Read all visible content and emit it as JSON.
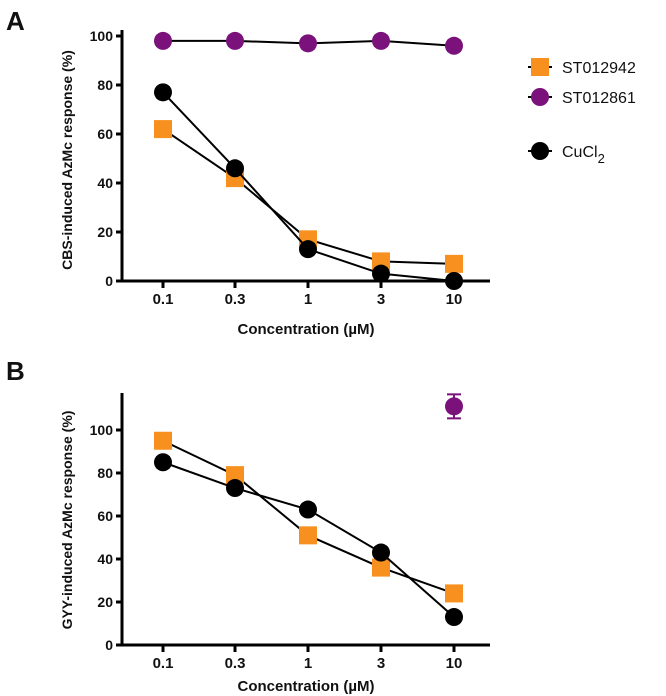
{
  "chart_data": [
    {
      "panel": "A",
      "type": "line",
      "xlabel": "Concentration (µM)",
      "ylabel": "CBS-induced AzMc response (%)",
      "categories": [
        "0.1",
        "0.3",
        "1",
        "3",
        "10"
      ],
      "ylim": [
        0,
        100
      ],
      "yticks": [
        0,
        20,
        40,
        60,
        80,
        100
      ],
      "series": [
        {
          "name": "ST012942",
          "color": "#f7901e",
          "marker": "square",
          "values": [
            62,
            42,
            17,
            8,
            7
          ]
        },
        {
          "name": "ST012861",
          "color": "#7b127b",
          "marker": "circle",
          "values": [
            98,
            98,
            97,
            98,
            96
          ]
        },
        {
          "name": "CuCl2",
          "color": "#000000",
          "marker": "circle",
          "values": [
            77,
            46,
            13,
            3,
            0
          ]
        }
      ]
    },
    {
      "panel": "B",
      "type": "line",
      "xlabel": "Concentration (µM)",
      "ylabel": "GYY-induced AzMc response (%)",
      "categories": [
        "0.1",
        "0.3",
        "1",
        "3",
        "10"
      ],
      "ylim": [
        0,
        120
      ],
      "yticks": [
        0,
        20,
        40,
        60,
        80,
        100
      ],
      "series": [
        {
          "name": "ST012942",
          "color": "#f7901e",
          "marker": "square",
          "values": [
            95,
            79,
            51,
            36,
            24
          ]
        },
        {
          "name": "ST012861",
          "color": "#7b127b",
          "marker": "circle",
          "values": [
            null,
            null,
            null,
            null,
            111
          ]
        },
        {
          "name": "CuCl2",
          "color": "#000000",
          "marker": "circle",
          "values": [
            85,
            73,
            63,
            43,
            13
          ]
        }
      ]
    }
  ],
  "legend": [
    {
      "label": "ST012942",
      "sub": ""
    },
    {
      "label": "ST012861",
      "sub": ""
    },
    {
      "label": "CuCl",
      "sub": "2"
    }
  ]
}
